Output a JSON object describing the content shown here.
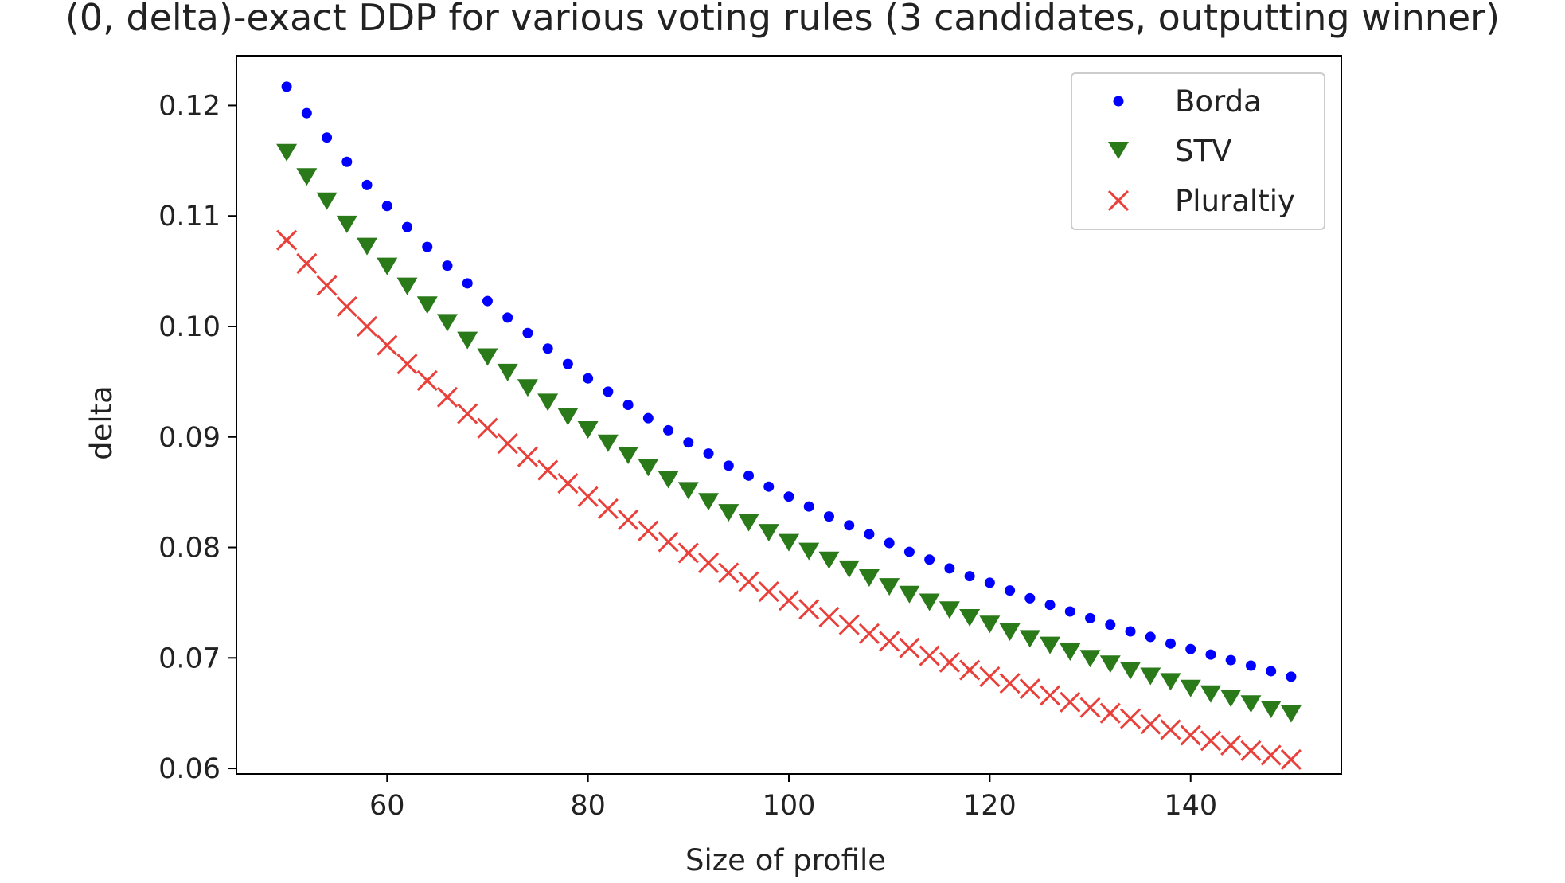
{
  "chart_data": {
    "type": "scatter",
    "title": "(0, delta)-exact DDP for various voting rules (3 candidates, outputting winner)",
    "xlabel": "Size of profile",
    "ylabel": "delta",
    "xlim": [
      45,
      155
    ],
    "ylim": [
      0.0595,
      0.1245
    ],
    "xticks": [
      60,
      80,
      100,
      120,
      140
    ],
    "yticks": [
      0.06,
      0.07,
      0.08,
      0.09,
      0.1,
      0.11,
      0.12
    ],
    "xtick_labels": [
      "60",
      "80",
      "100",
      "120",
      "140"
    ],
    "ytick_labels": [
      "0.06",
      "0.07",
      "0.08",
      "0.09",
      "0.10",
      "0.11",
      "0.12"
    ],
    "legend_position": "top-right",
    "x": [
      50,
      52,
      54,
      56,
      58,
      60,
      62,
      64,
      66,
      68,
      70,
      72,
      74,
      76,
      78,
      80,
      82,
      84,
      86,
      88,
      90,
      92,
      94,
      96,
      98,
      100,
      102,
      104,
      106,
      108,
      110,
      112,
      114,
      116,
      118,
      120,
      122,
      124,
      126,
      128,
      130,
      132,
      134,
      136,
      138,
      140,
      142,
      144,
      146,
      148,
      150
    ],
    "series": [
      {
        "name": "Borda",
        "marker": "circle",
        "color": "#0000ff",
        "values": [
          0.1217,
          0.1193,
          0.1171,
          0.1149,
          0.1128,
          0.1109,
          0.109,
          0.1072,
          0.1055,
          0.1039,
          0.1023,
          0.1008,
          0.0994,
          0.098,
          0.0966,
          0.0953,
          0.0941,
          0.0929,
          0.0917,
          0.0906,
          0.0895,
          0.0885,
          0.0874,
          0.0865,
          0.0855,
          0.0846,
          0.0837,
          0.0828,
          0.082,
          0.0812,
          0.0804,
          0.0796,
          0.0789,
          0.0781,
          0.0774,
          0.0768,
          0.0761,
          0.0754,
          0.0748,
          0.0742,
          0.0736,
          0.073,
          0.0724,
          0.0719,
          0.0713,
          0.0708,
          0.0703,
          0.0698,
          0.0693,
          0.0688,
          0.0683
        ]
      },
      {
        "name": "STV",
        "marker": "triangle-down",
        "color": "#2a7a1a",
        "values": [
          0.1158,
          0.1136,
          0.1114,
          0.1093,
          0.1073,
          0.1055,
          0.1037,
          0.102,
          0.1004,
          0.0988,
          0.0973,
          0.0959,
          0.0945,
          0.0932,
          0.0919,
          0.0907,
          0.0895,
          0.0884,
          0.0873,
          0.0862,
          0.0852,
          0.0842,
          0.0832,
          0.0823,
          0.0814,
          0.0805,
          0.0797,
          0.0789,
          0.0781,
          0.0773,
          0.0765,
          0.0758,
          0.0751,
          0.0744,
          0.0737,
          0.0731,
          0.0724,
          0.0718,
          0.0712,
          0.0706,
          0.07,
          0.0695,
          0.0689,
          0.0684,
          0.0679,
          0.0673,
          0.0668,
          0.0664,
          0.0659,
          0.0654,
          0.065
        ]
      },
      {
        "name": "Pluraltiy",
        "marker": "x",
        "color": "#e8403a",
        "values": [
          0.1078,
          0.1057,
          0.1037,
          0.1018,
          0.1,
          0.0983,
          0.0966,
          0.0951,
          0.0936,
          0.0921,
          0.0908,
          0.0894,
          0.0882,
          0.087,
          0.0858,
          0.0846,
          0.0835,
          0.0825,
          0.0815,
          0.0805,
          0.0795,
          0.0786,
          0.0777,
          0.0769,
          0.076,
          0.0752,
          0.0744,
          0.0737,
          0.073,
          0.0722,
          0.0715,
          0.0709,
          0.0702,
          0.0696,
          0.0689,
          0.0683,
          0.0677,
          0.0672,
          0.0666,
          0.066,
          0.0655,
          0.065,
          0.0645,
          0.064,
          0.0635,
          0.063,
          0.0625,
          0.0621,
          0.0616,
          0.0612,
          0.0608
        ]
      }
    ]
  }
}
